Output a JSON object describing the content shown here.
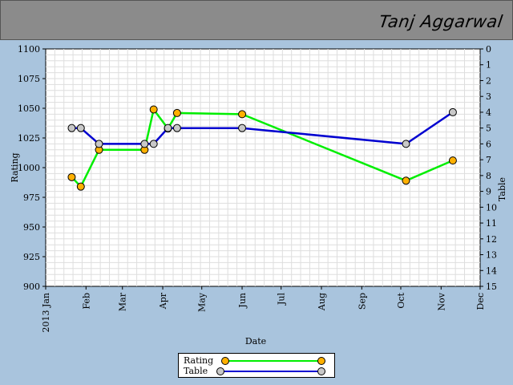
{
  "header": {
    "player_name": "Tanj Aggarwal"
  },
  "colors": {
    "background": "#a9c4dd",
    "header": "#8b8b8b",
    "plot_bg": "#ffffff",
    "grid": "#d9d9d9",
    "rating_line": "#00ee00",
    "rating_marker": "#ffb000",
    "table_line": "#0000d0",
    "table_marker": "#c8c8c8"
  },
  "chart_data": {
    "type": "line",
    "xlabel": "Date",
    "ylabel": "Rating",
    "y2label": "Table",
    "x_ticks": [
      "2013 Jan",
      "Feb",
      "Mar",
      "Apr",
      "May",
      "Jun",
      "Jul",
      "Aug",
      "Sep",
      "Oct",
      "Nov",
      "Dec"
    ],
    "xlim": [
      "2013-01-01",
      "2013-12-01"
    ],
    "ylim": [
      900,
      1100
    ],
    "y_ticks": [
      900,
      925,
      950,
      975,
      1000,
      1025,
      1050,
      1075,
      1100
    ],
    "y2lim": [
      15,
      0
    ],
    "y2_ticks": [
      0,
      1,
      2,
      3,
      4,
      5,
      6,
      7,
      8,
      9,
      10,
      11,
      12,
      13,
      14,
      15
    ],
    "grid": true,
    "legend": "bottom-center",
    "series": [
      {
        "name": "Rating",
        "axis": "left",
        "points": [
          {
            "x": "2013-01-21",
            "y": 992
          },
          {
            "x": "2013-01-28",
            "y": 984
          },
          {
            "x": "2013-02-11",
            "y": 1015
          },
          {
            "x": "2013-03-18",
            "y": 1015
          },
          {
            "x": "2013-03-25",
            "y": 1049
          },
          {
            "x": "2013-04-05",
            "y": 1033
          },
          {
            "x": "2013-04-12",
            "y": 1046
          },
          {
            "x": "2013-06-01",
            "y": 1045
          },
          {
            "x": "2013-10-05",
            "y": 989
          },
          {
            "x": "2013-11-10",
            "y": 1006
          }
        ]
      },
      {
        "name": "Table",
        "axis": "right",
        "points": [
          {
            "x": "2013-01-21",
            "y": 5
          },
          {
            "x": "2013-01-28",
            "y": 5
          },
          {
            "x": "2013-02-11",
            "y": 6
          },
          {
            "x": "2013-03-18",
            "y": 6
          },
          {
            "x": "2013-03-25",
            "y": 6
          },
          {
            "x": "2013-04-05",
            "y": 5
          },
          {
            "x": "2013-04-12",
            "y": 5
          },
          {
            "x": "2013-06-01",
            "y": 5
          },
          {
            "x": "2013-10-05",
            "y": 6
          },
          {
            "x": "2013-11-10",
            "y": 4
          }
        ]
      }
    ]
  }
}
